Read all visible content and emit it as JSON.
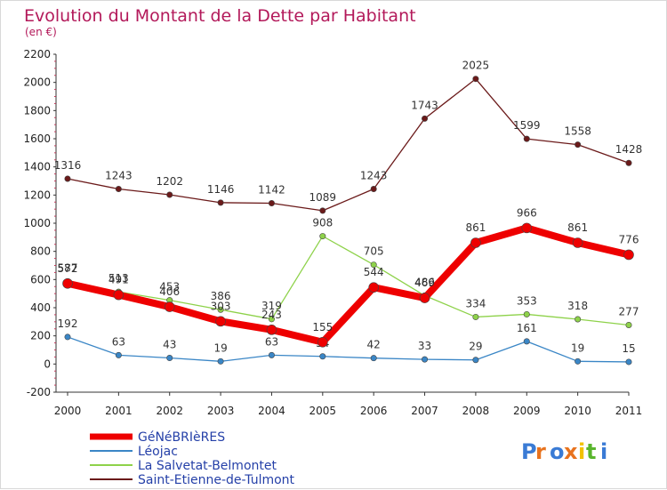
{
  "chart_data": {
    "type": "line",
    "title": "Evolution du Montant de la Dette par Habitant",
    "subtitle": "(en €)",
    "x": [
      "2000",
      "2001",
      "2002",
      "2003",
      "2004",
      "2005",
      "2006",
      "2007",
      "2008",
      "2009",
      "2010",
      "2011"
    ],
    "ylim": [
      -200,
      2200
    ],
    "yticks": [
      -200,
      0,
      200,
      400,
      600,
      800,
      1000,
      1200,
      1400,
      1600,
      1800,
      2000,
      2200
    ],
    "grid": false,
    "legend_position": "bottom-left",
    "series": [
      {
        "name": "Saint-Etienne-de-Tulmont",
        "color": "#6b1a1a",
        "values": [
          1316,
          1243,
          1202,
          1146,
          1142,
          1089,
          1243,
          1743,
          2025,
          1599,
          1558,
          1428
        ]
      },
      {
        "name": "La Salvetat-Belmontet",
        "color": "#8ed24a",
        "values": [
          587,
          513,
          453,
          386,
          319,
          908,
          705,
          486,
          334,
          353,
          318,
          277
        ]
      },
      {
        "name": "Léojac",
        "color": "#3a86c6",
        "values": [
          192,
          63,
          43,
          19,
          63,
          54,
          42,
          33,
          29,
          161,
          19,
          15
        ]
      },
      {
        "name": "GéNéBRIèRES",
        "color": "#ee0000",
        "values": [
          572,
          491,
          406,
          303,
          243,
          155,
          544,
          469,
          861,
          966,
          861,
          776
        ]
      }
    ]
  },
  "logo": {
    "text": "Proxiti"
  }
}
